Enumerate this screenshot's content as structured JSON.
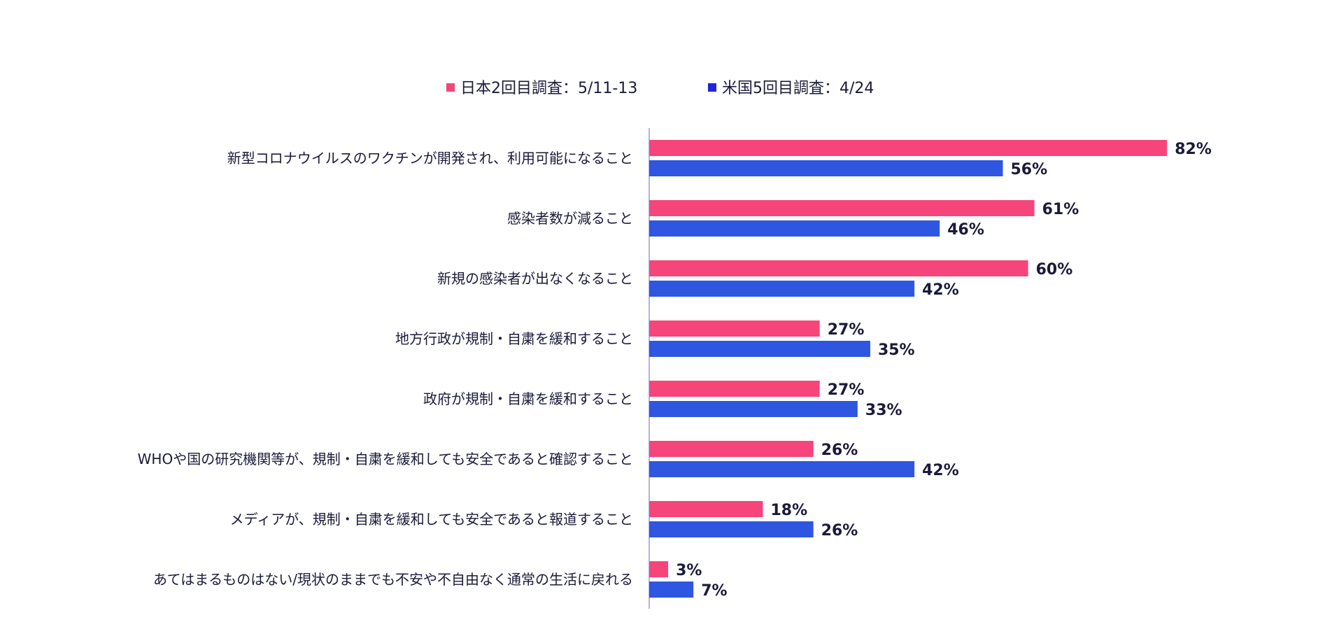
{
  "chart_data": {
    "type": "bar",
    "orientation": "horizontal",
    "categories": [
      "新型コロナウイルスのワクチンが開発され、利用可能になること",
      "感染者数が減ること",
      "新規の感染者が出なくなること",
      "地方行政が規制・自粛を緩和すること",
      "政府が規制・自粛を緩和すること",
      "WHOや国の研究機関等が、規制・自粛を緩和しても安全であると確認すること",
      "メディアが、規制・自粛を緩和しても安全であると報道すること",
      "あてはまるものはない/現状のままでも不安や不自由なく通常の生活に戻れる"
    ],
    "series": [
      {
        "name": "日本2回目調査：5/11-13",
        "color": "#f5457a",
        "values": [
          82,
          61,
          60,
          27,
          27,
          26,
          18,
          3
        ],
        "labels": [
          "82%",
          "61%",
          "60%",
          "27%",
          "27%",
          "26%",
          "18%",
          "3%"
        ]
      },
      {
        "name": "米国5回目調査：4/24",
        "color": "#2e56e0",
        "values": [
          56,
          46,
          42,
          35,
          33,
          42,
          26,
          7
        ],
        "labels": [
          "56%",
          "46%",
          "42%",
          "35%",
          "33%",
          "42%",
          "26%",
          "7%"
        ]
      }
    ],
    "value_unit": "%",
    "xlim": [
      0,
      100
    ],
    "grid": false,
    "legend_position": "top-center",
    "axis_color": "#b3b3e6",
    "legend_marker_colors": [
      "#f5457a",
      "#2222e0"
    ]
  }
}
